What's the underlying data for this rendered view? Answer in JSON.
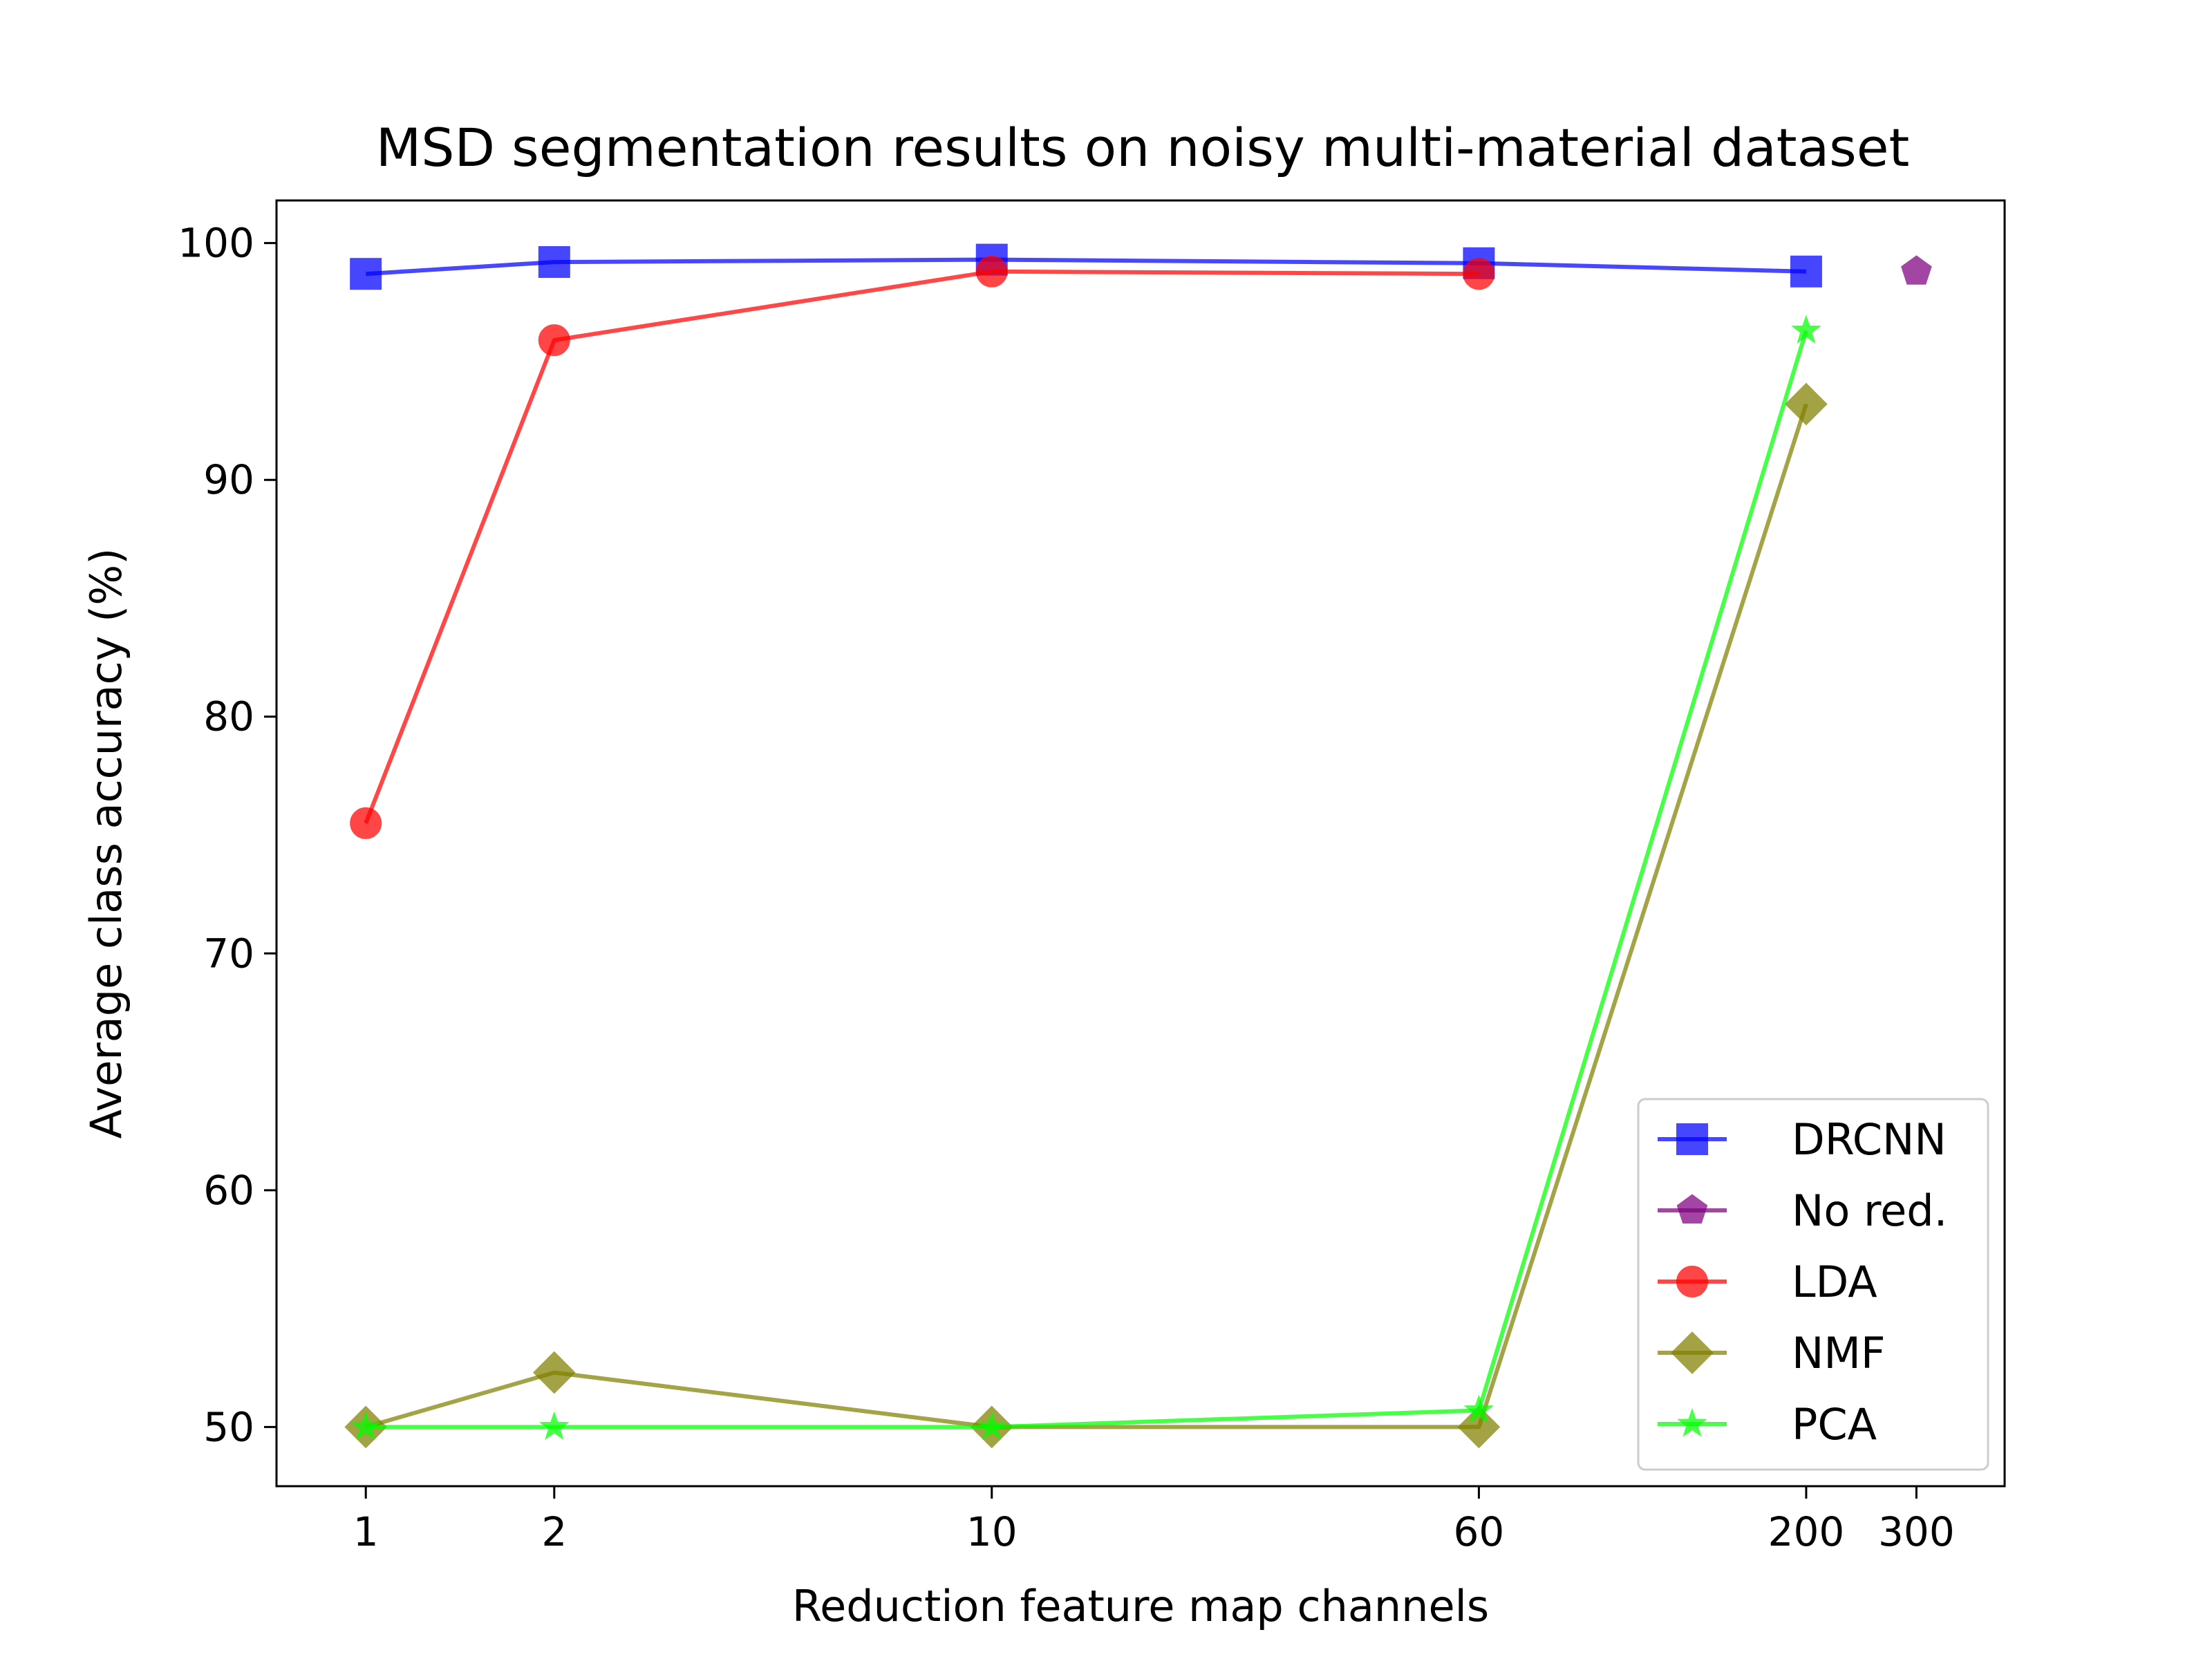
{
  "chart_data": {
    "type": "line",
    "title": "MSD segmentation results on noisy multi-material dataset",
    "xlabel": "Reduction feature map channels",
    "ylabel": "Average class accuracy (%)",
    "x_scale": "log",
    "xlim": [
      0.72,
      415
    ],
    "ylim": [
      47.5,
      101.8
    ],
    "xticks": [
      1,
      2,
      10,
      60,
      200,
      300
    ],
    "xtick_labels": [
      "1",
      "2",
      "10",
      "60",
      "200",
      "300"
    ],
    "yticks": [
      50,
      60,
      70,
      80,
      90,
      100
    ],
    "ytick_labels": [
      "50",
      "60",
      "70",
      "80",
      "90",
      "100"
    ],
    "grid": false,
    "legend_position": "lower-right",
    "series": [
      {
        "name": "DRCNN",
        "color": "#0000ff",
        "marker": "square",
        "x": [
          1,
          2,
          10,
          60,
          200
        ],
        "y": [
          98.7,
          99.2,
          99.3,
          99.15,
          98.8
        ]
      },
      {
        "name": "No red.",
        "color": "#800080",
        "marker": "pentagon",
        "x": [
          300
        ],
        "y": [
          98.8
        ]
      },
      {
        "name": "LDA",
        "color": "#ff0000",
        "marker": "circle",
        "x": [
          1,
          2,
          10,
          60
        ],
        "y": [
          75.5,
          95.9,
          98.8,
          98.7
        ]
      },
      {
        "name": "NMF",
        "color": "#808000",
        "marker": "diamond",
        "x": [
          1,
          2,
          10,
          60,
          200
        ],
        "y": [
          50.0,
          52.3,
          50.0,
          50.0,
          93.2
        ]
      },
      {
        "name": "PCA",
        "color": "#00ff00",
        "marker": "star",
        "x": [
          1,
          2,
          10,
          60,
          200
        ],
        "y": [
          50.0,
          50.0,
          50.0,
          50.7,
          96.3
        ]
      }
    ]
  }
}
